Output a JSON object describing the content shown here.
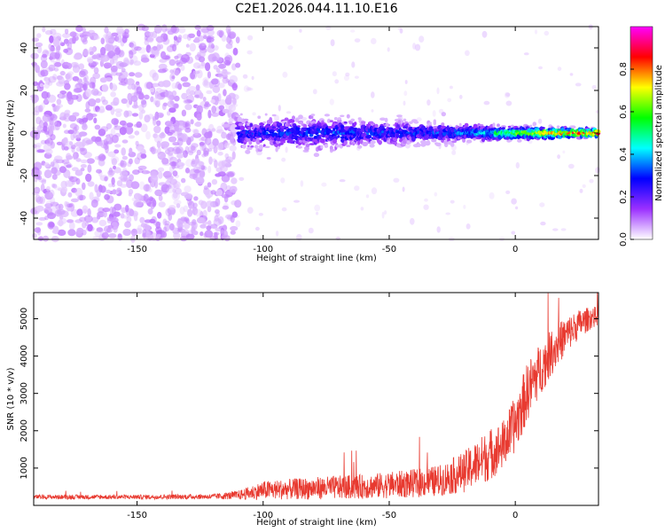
{
  "title": "C2E1.2026.044.11.10.E16",
  "chart_data": [
    {
      "type": "heatmap",
      "xlabel": "Height of straight line (km)",
      "ylabel": "Frequency (Hz)",
      "xlim": [
        -191,
        33
      ],
      "ylim": [
        -50,
        50
      ],
      "xticks": [
        -150,
        -100,
        -50,
        0
      ],
      "yticks": [
        -40,
        -20,
        0,
        20,
        40
      ],
      "colorbar": {
        "label": "Normalized spectral amplitude",
        "range": [
          0,
          1
        ],
        "ticks": [
          "0.0",
          "0.2",
          "0.4",
          "0.6",
          "0.8"
        ],
        "colors": [
          "#ffffff",
          "#9b30ff",
          "#0000ff",
          "#00ffff",
          "#00ff00",
          "#ffff00",
          "#ff0000",
          "#ff00ff"
        ]
      },
      "description_series": [
        {
          "name": "noise",
          "x_range": [
            -191,
            -110
          ],
          "freq_spread": 50,
          "amplitude": 0.08
        },
        {
          "name": "signal-band",
          "points": [
            {
              "x": -110,
              "halfwidth": 5,
              "amp": 0.25
            },
            {
              "x": -90,
              "halfwidth": 5,
              "amp": 0.3
            },
            {
              "x": -70,
              "halfwidth": 5,
              "amp": 0.3
            },
            {
              "x": -50,
              "halfwidth": 4,
              "amp": 0.3
            },
            {
              "x": -30,
              "halfwidth": 3,
              "amp": 0.3
            },
            {
              "x": -10,
              "halfwidth": 2.5,
              "amp": 0.45
            },
            {
              "x": 10,
              "halfwidth": 2,
              "amp": 0.75
            },
            {
              "x": 30,
              "halfwidth": 1.5,
              "amp": 0.9
            }
          ]
        }
      ]
    },
    {
      "type": "line",
      "xlabel": "Height of straight line (km)",
      "ylabel": "SNR (10 * v/v)",
      "xlim": [
        -191,
        33
      ],
      "ylim": [
        0,
        5700
      ],
      "xticks": [
        -150,
        -100,
        -50,
        0
      ],
      "yticks": [
        1000,
        2000,
        3000,
        4000,
        5000
      ],
      "color": "#e83a30",
      "envelope": {
        "x": [
          -191,
          -150,
          -120,
          -110,
          -100,
          -80,
          -60,
          -40,
          -30,
          -20,
          -10,
          -5,
          0,
          5,
          10,
          15,
          20,
          25,
          30,
          33
        ],
        "mean": [
          220,
          220,
          230,
          260,
          380,
          430,
          470,
          550,
          620,
          850,
          1300,
          1550,
          2100,
          3000,
          3600,
          4100,
          4500,
          4800,
          5000,
          5050
        ],
        "noise": [
          60,
          60,
          70,
          120,
          250,
          300,
          330,
          380,
          420,
          550,
          700,
          650,
          750,
          800,
          700,
          600,
          500,
          400,
          300,
          250
        ]
      }
    }
  ]
}
